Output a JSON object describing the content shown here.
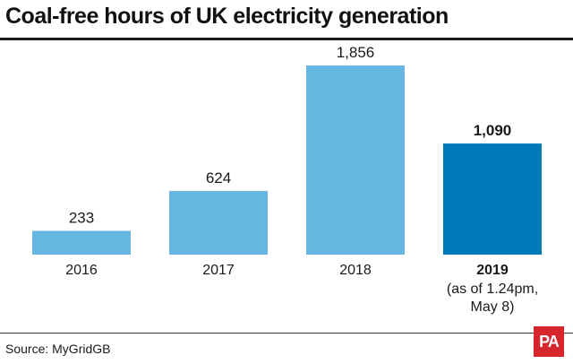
{
  "title": "Coal-free hours of UK electricity generation",
  "source": "Source: MyGridGB",
  "logo_text": "PA",
  "colors": {
    "bar": "#65b7e1",
    "bar_highlight": "#0079b8",
    "logo": "#d6252b"
  },
  "chart_data": {
    "type": "bar",
    "title": "Coal-free hours of UK electricity generation",
    "categories": [
      "2016",
      "2017",
      "2018",
      "2019"
    ],
    "category_notes": [
      "",
      "",
      "",
      "(as of 1.24pm, May 8)"
    ],
    "category_note_lines": [
      "(as of 1.24pm,",
      "May 8)"
    ],
    "values": [
      233,
      624,
      1856,
      1090
    ],
    "value_labels": [
      "233",
      "624",
      "1,856",
      "1,090"
    ],
    "highlight_index": 3,
    "xlabel": "",
    "ylabel": "",
    "ylim": [
      0,
      1856
    ],
    "grid": false,
    "legend": "none"
  }
}
